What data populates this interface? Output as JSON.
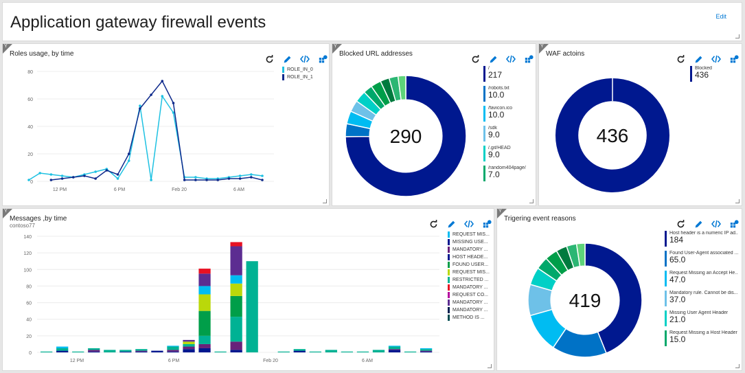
{
  "page": {
    "title": "Application gateway firewall events",
    "edit_label": "Edit"
  },
  "tiles": {
    "roles": {
      "title": "Roles usage, by time",
      "legend": [
        {
          "label": "ROLE_IN_0",
          "color": "#1ec1e2"
        },
        {
          "label": "ROLE_IN_1",
          "color": "#0e2a8c"
        }
      ]
    },
    "blocked": {
      "title": "Blocked URL addresses",
      "total": "290",
      "legend": [
        {
          "label": "/",
          "value": "217",
          "color": "#00188f"
        },
        {
          "label": "/robots.txt",
          "value": "10.0",
          "color": "#0072c6"
        },
        {
          "label": "/favicon.ico",
          "value": "10.0",
          "color": "#00bcf2"
        },
        {
          "label": "/sdk",
          "value": "9.0",
          "color": "#6ec1e8"
        },
        {
          "label": "/.git/HEAD",
          "value": "9.0",
          "color": "#00d0c6"
        },
        {
          "label": "/random404page/",
          "value": "7.0",
          "color": "#00a86b"
        }
      ]
    },
    "waf": {
      "title": "WAF actoins",
      "total": "436",
      "legend": [
        {
          "label": "Blocked",
          "value": "436",
          "color": "#00188f"
        }
      ]
    },
    "messages": {
      "title": "Messages ,by time",
      "subtitle": "contoso77",
      "legend": [
        {
          "label": "REQUEST MIS...",
          "color": "#00bcf2"
        },
        {
          "label": "MISSING USE...",
          "color": "#00188f"
        },
        {
          "label": "MANDATORY ...",
          "color": "#68217a"
        },
        {
          "label": "HOST HEADE...",
          "color": "#00188f"
        },
        {
          "label": "FOUND USER...",
          "color": "#009e49"
        },
        {
          "label": "REQUEST MIS...",
          "color": "#bad80a"
        },
        {
          "label": "RESTRICTED ...",
          "color": "#00b294"
        },
        {
          "label": "MANDATORY ...",
          "color": "#e81123"
        },
        {
          "label": "REQUEST CO...",
          "color": "#b4009e"
        },
        {
          "label": "MANDATORY ...",
          "color": "#5c2d91"
        },
        {
          "label": "MANDATORY ...",
          "color": "#002050"
        },
        {
          "label": "METHOD IS ...",
          "color": "#004b50"
        }
      ]
    },
    "reasons": {
      "title": "Trigering event reasons",
      "total": "419",
      "legend": [
        {
          "label": "Host header is a numeric IP ad...",
          "value": "184",
          "color": "#00188f"
        },
        {
          "label": "Found User-Agent associated ...",
          "value": "65.0",
          "color": "#0072c6"
        },
        {
          "label": "Request Missing an Accept He...",
          "value": "47.0",
          "color": "#00bcf2"
        },
        {
          "label": "Mandatory rule. Cannot be dis...",
          "value": "37.0",
          "color": "#6ec1e8"
        },
        {
          "label": "Missing User Agent Header",
          "value": "21.0",
          "color": "#00d0c6"
        },
        {
          "label": "Request Missing a Host Header",
          "value": "15.0",
          "color": "#00a86b"
        }
      ]
    }
  },
  "chart_data": [
    {
      "type": "line",
      "x_tick_labels": [
        "12 PM",
        "6 PM",
        "Feb 20",
        "6 AM"
      ],
      "ylim": [
        0,
        80
      ],
      "y_ticks": [
        0,
        20,
        40,
        60,
        80
      ],
      "series": [
        {
          "name": "ROLE_IN_0",
          "color": "#1ec1e2",
          "values": [
            1,
            6,
            5,
            4,
            3,
            5,
            7,
            9,
            2,
            15,
            55,
            1,
            62,
            50,
            3,
            3,
            2,
            2,
            3,
            4,
            5,
            4
          ]
        },
        {
          "name": "ROLE_IN_1",
          "color": "#0e2a8c",
          "values": [
            null,
            null,
            1,
            2,
            3,
            4,
            2,
            8,
            5,
            20,
            53,
            63,
            73,
            57,
            1,
            1,
            1,
            1,
            2,
            2,
            3,
            1
          ]
        }
      ]
    },
    {
      "type": "pie",
      "total": "290",
      "slices": [
        {
          "label": "/",
          "value": 217,
          "color": "#00188f"
        },
        {
          "label": "/robots.txt",
          "value": 10,
          "color": "#0072c6"
        },
        {
          "label": "/favicon.ico",
          "value": 10,
          "color": "#00bcf2"
        },
        {
          "label": "/sdk",
          "value": 9,
          "color": "#6ec1e8"
        },
        {
          "label": "/.git/HEAD",
          "value": 9,
          "color": "#00d0c6"
        },
        {
          "label": "/random404page/",
          "value": 7,
          "color": "#00a86b"
        },
        {
          "label": "",
          "value": 8,
          "color": "#009e49"
        },
        {
          "label": "",
          "value": 7,
          "color": "#007a3e"
        },
        {
          "label": "",
          "value": 7,
          "color": "#2bb673"
        },
        {
          "label": "",
          "value": 6,
          "color": "#5ed37a"
        }
      ]
    },
    {
      "type": "pie",
      "total": "436",
      "slices": [
        {
          "label": "Blocked",
          "value": 436,
          "color": "#00188f"
        }
      ]
    },
    {
      "type": "bar",
      "stacked": true,
      "x_tick_labels": [
        "12 PM",
        "6 PM",
        "Feb 20",
        "6 AM"
      ],
      "ylim": [
        0,
        140
      ],
      "y_ticks": [
        0,
        20,
        40,
        60,
        80,
        100,
        120,
        140
      ],
      "series_colors": [
        "#00188f",
        "#68217a",
        "#00b294",
        "#009e49",
        "#bad80a",
        "#00bcf2",
        "#5c2d91",
        "#e81123"
      ],
      "stacks": [
        [
          0,
          0,
          1,
          0,
          0,
          0,
          0,
          0
        ],
        [
          2,
          0,
          3,
          0,
          0,
          2,
          0,
          0
        ],
        [
          0,
          0,
          1,
          0,
          0,
          0,
          0,
          0
        ],
        [
          1,
          2,
          2,
          0,
          0,
          0,
          0,
          0
        ],
        [
          0,
          0,
          3,
          0,
          0,
          0,
          0,
          0
        ],
        [
          1,
          0,
          2,
          0,
          0,
          0,
          0,
          0
        ],
        [
          1,
          1,
          2,
          0,
          0,
          0,
          0,
          0
        ],
        [
          2,
          0,
          0,
          0,
          0,
          0,
          0,
          0
        ],
        [
          1,
          2,
          4,
          0,
          0,
          1,
          0,
          0
        ],
        [
          4,
          3,
          3,
          0,
          3,
          0,
          2,
          0
        ],
        [
          5,
          5,
          10,
          30,
          20,
          10,
          15,
          6
        ],
        [
          0,
          0,
          1,
          0,
          0,
          0,
          0,
          0
        ],
        [
          3,
          10,
          30,
          25,
          15,
          10,
          35,
          5
        ],
        [
          0,
          0,
          110,
          0,
          0,
          0,
          0,
          0
        ],
        [
          0,
          0,
          0,
          0,
          0,
          0,
          0,
          0
        ],
        [
          0,
          0,
          1,
          0,
          0,
          0,
          0,
          0
        ],
        [
          2,
          0,
          2,
          0,
          0,
          0,
          0,
          0
        ],
        [
          0,
          0,
          1,
          0,
          0,
          0,
          0,
          0
        ],
        [
          0,
          0,
          3,
          0,
          0,
          0,
          0,
          0
        ],
        [
          0,
          0,
          1,
          0,
          0,
          0,
          0,
          0
        ],
        [
          0,
          0,
          1,
          0,
          0,
          0,
          0,
          0
        ],
        [
          0,
          0,
          3,
          0,
          0,
          0,
          0,
          0
        ],
        [
          3,
          1,
          3,
          0,
          0,
          1,
          0,
          0
        ],
        [
          0,
          0,
          1,
          0,
          0,
          0,
          0,
          0
        ],
        [
          1,
          1,
          2,
          0,
          0,
          1,
          0,
          0
        ]
      ]
    },
    {
      "type": "pie",
      "total": "419",
      "slices": [
        {
          "label": "Host header is a numeric IP ad...",
          "value": 184,
          "color": "#00188f"
        },
        {
          "label": "Found User-Agent associated ...",
          "value": 65,
          "color": "#0072c6"
        },
        {
          "label": "Request Missing an Accept He...",
          "value": 47,
          "color": "#00bcf2"
        },
        {
          "label": "Mandatory rule. Cannot be dis...",
          "value": 37,
          "color": "#6ec1e8"
        },
        {
          "label": "Missing User Agent Header",
          "value": 21,
          "color": "#00d0c6"
        },
        {
          "label": "Request Missing a Host Header",
          "value": 15,
          "color": "#00a86b"
        },
        {
          "label": "",
          "value": 15,
          "color": "#009e49"
        },
        {
          "label": "",
          "value": 13,
          "color": "#007a3e"
        },
        {
          "label": "",
          "value": 12,
          "color": "#2bb673"
        },
        {
          "label": "",
          "value": 10,
          "color": "#5ed37a"
        }
      ]
    }
  ]
}
